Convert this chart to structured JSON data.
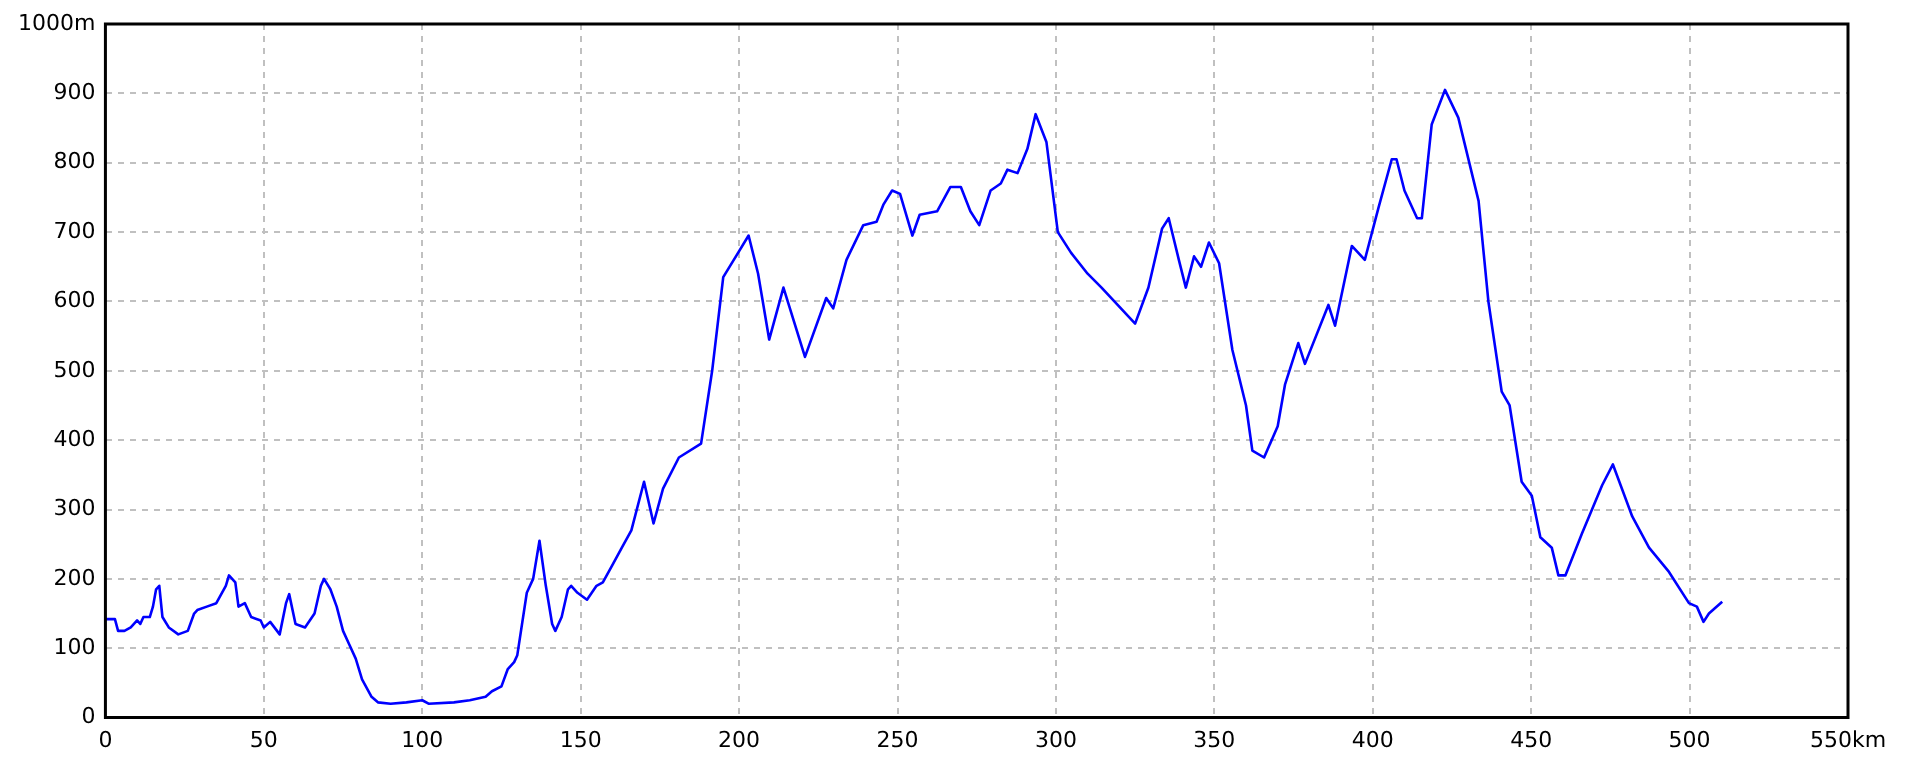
{
  "chart_data": {
    "type": "line",
    "color": "#0000ff",
    "grid": true,
    "legend": false,
    "marker": "none",
    "line_style": "solid",
    "xlim": [
      0,
      550
    ],
    "ylim": [
      0,
      1000
    ],
    "xticks": [
      0,
      50,
      100,
      150,
      200,
      250,
      300,
      350,
      400,
      450,
      500,
      {
        "value": 550,
        "label": "550km"
      }
    ],
    "yticks": [
      0,
      100,
      200,
      300,
      400,
      500,
      600,
      700,
      800,
      900,
      {
        "value": 1000,
        "label": "1000m"
      }
    ],
    "x": [
      0,
      3,
      4,
      6,
      8,
      10,
      11,
      12,
      14,
      15,
      16,
      17,
      18,
      20,
      23,
      26,
      28,
      29,
      32,
      35,
      38,
      39,
      41,
      42,
      44,
      46,
      49,
      50,
      52,
      55,
      57,
      58,
      60,
      63,
      66,
      68,
      69,
      71,
      73,
      75,
      77,
      79,
      81,
      84,
      86,
      90,
      95,
      100,
      102,
      110,
      115,
      120,
      122,
      125,
      127,
      129,
      130,
      133,
      135,
      137,
      139,
      141,
      142,
      144,
      146,
      147,
      149,
      152,
      155,
      157,
      160,
      163,
      166,
      170,
      173,
      176,
      181,
      188,
      191.5,
      195,
      199,
      203,
      206,
      209.5,
      214,
      220.8,
      227.5,
      229.7,
      233.9,
      239.2,
      243.4,
      245.6,
      248.3,
      250.8,
      254.7,
      257,
      262.5,
      266.7,
      270,
      273,
      275.8,
      279.4,
      282.6,
      284.7,
      287.9,
      291,
      293.6,
      297,
      300.6,
      304.8,
      310,
      314.4,
      325,
      329.2,
      333.5,
      335.6,
      338.8,
      341,
      343.6,
      345.8,
      348.3,
      351.5,
      355.7,
      360,
      362,
      365.7,
      370,
      372.3,
      376.5,
      378.6,
      386,
      388.1,
      393.4,
      397.5,
      401.8,
      406,
      407.5,
      410,
      414,
      415.5,
      418.6,
      422.8,
      427,
      433.4,
      436.5,
      440.7,
      443.2,
      447,
      450.2,
      452.9,
      456.5,
      458.6,
      460.8,
      466,
      472.4,
      475.8,
      481.9,
      487.2,
      493.5,
      499.8,
      502.3,
      504.4,
      506.1,
      510.3
    ],
    "values": [
      142,
      142,
      125,
      125,
      130,
      140,
      135,
      145,
      145,
      160,
      185,
      190,
      145,
      130,
      120,
      125,
      150,
      155,
      160,
      165,
      190,
      205,
      195,
      160,
      165,
      145,
      140,
      130,
      138,
      120,
      165,
      178,
      135,
      130,
      150,
      190,
      200,
      185,
      160,
      125,
      105,
      85,
      55,
      30,
      22,
      20,
      22,
      25,
      20,
      22,
      25,
      30,
      38,
      45,
      70,
      80,
      90,
      180,
      200,
      255,
      190,
      135,
      125,
      145,
      185,
      190,
      180,
      170,
      190,
      195,
      220,
      245,
      270,
      340,
      280,
      330,
      375,
      395,
      500,
      635,
      665,
      695,
      640,
      545,
      620,
      520,
      605,
      590,
      660,
      710,
      715,
      740,
      760,
      755,
      695,
      725,
      730,
      765,
      765,
      730,
      710,
      760,
      770,
      790,
      785,
      820,
      870,
      830,
      700,
      670,
      640,
      620,
      568,
      620,
      705,
      720,
      660,
      620,
      665,
      650,
      685,
      655,
      530,
      450,
      385,
      375,
      420,
      480,
      540,
      510,
      595,
      565,
      680,
      660,
      735,
      805,
      805,
      760,
      720,
      720,
      855,
      905,
      865,
      745,
      600,
      470,
      450,
      340,
      320,
      260,
      245,
      205,
      205,
      265,
      335,
      365,
      290,
      245,
      210,
      165,
      160,
      138,
      150,
      167
    ]
  }
}
